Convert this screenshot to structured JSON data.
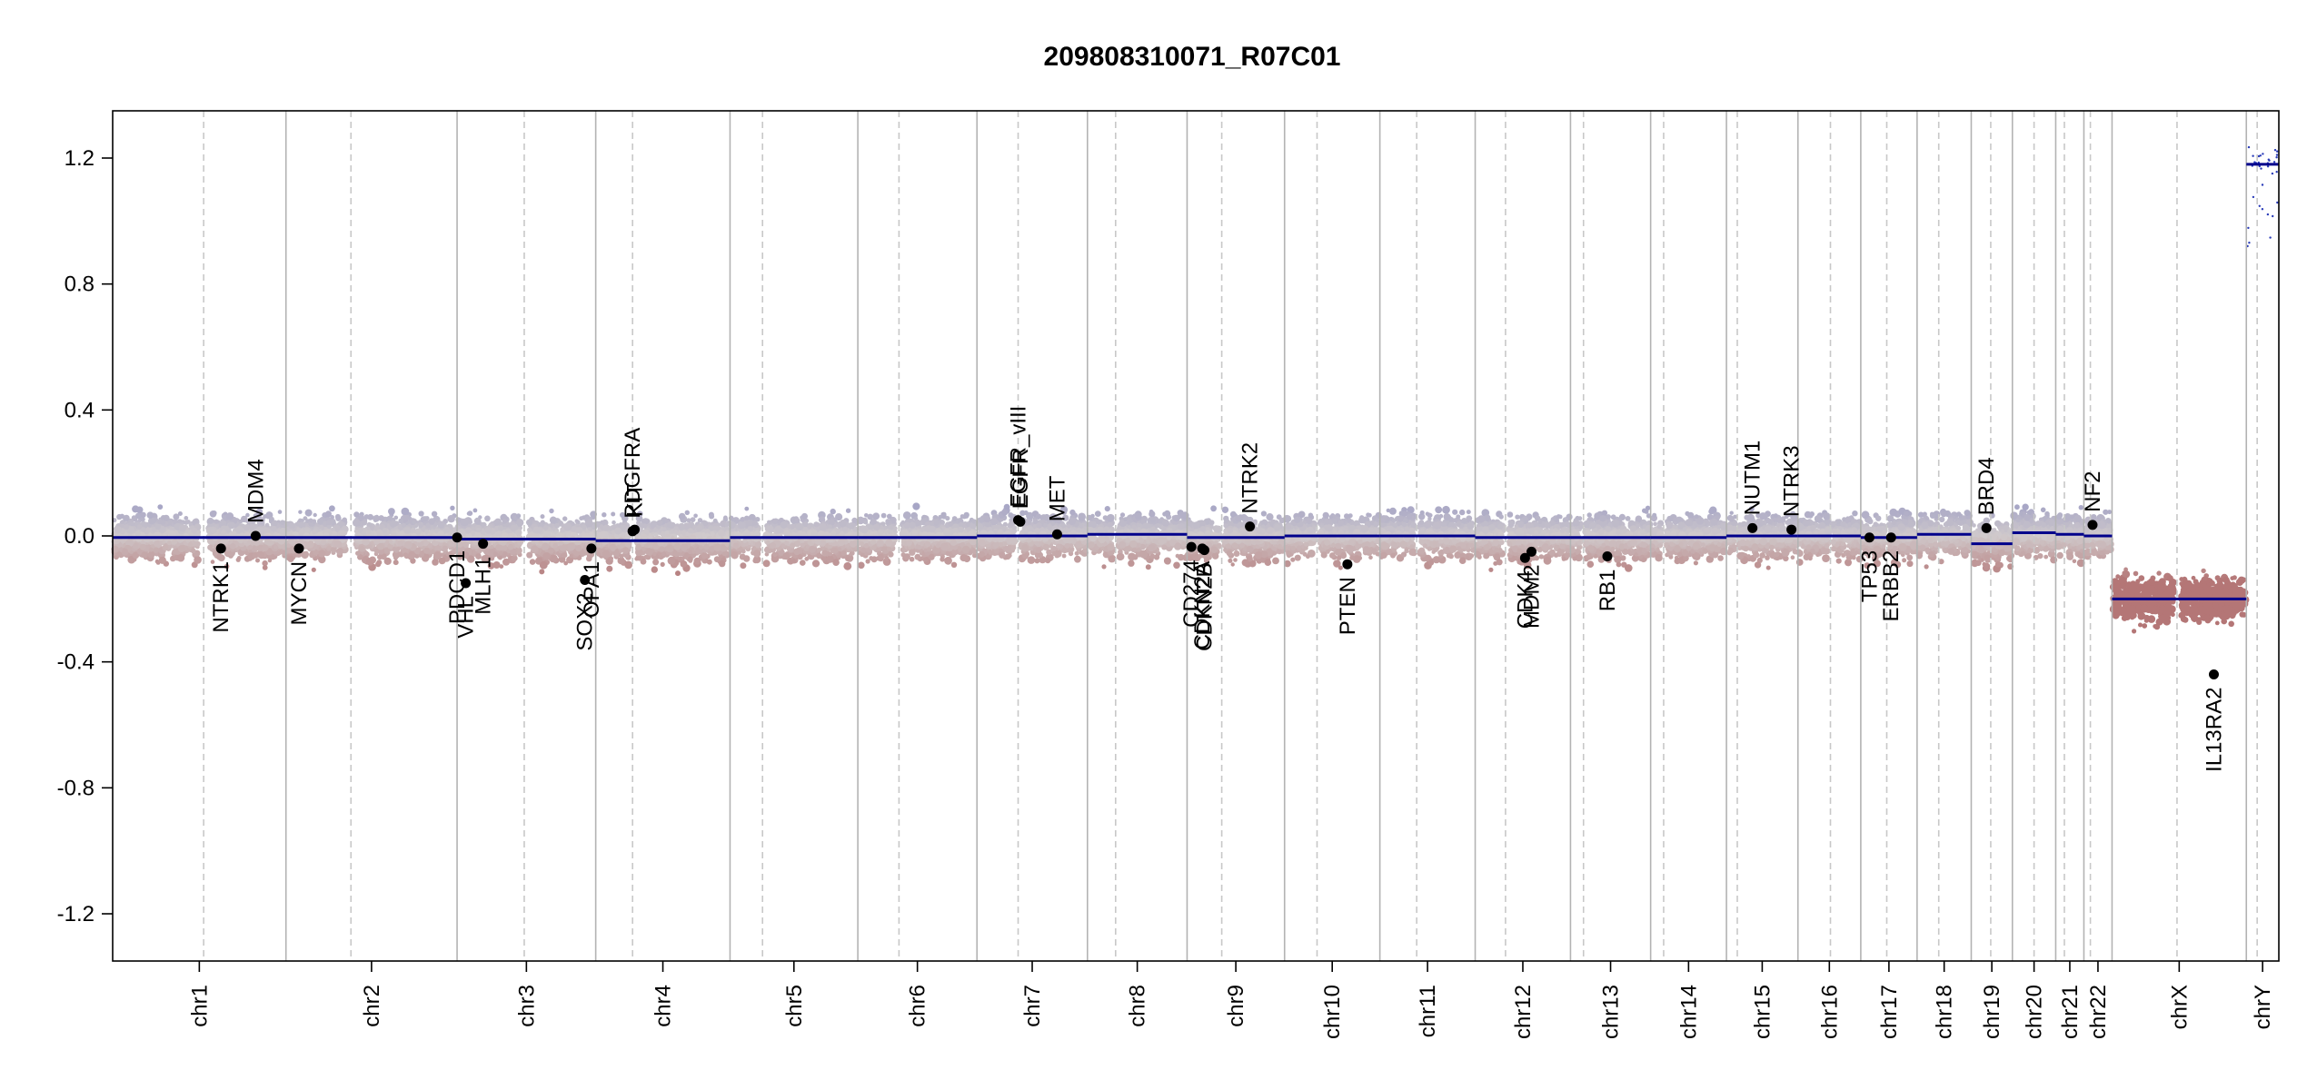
{
  "chart_data": {
    "type": "scatter",
    "title": "209808310071_R07C01",
    "xlabel": "",
    "ylabel": "",
    "ylim": [
      -1.35,
      1.35
    ],
    "yticks": [
      -1.2,
      -0.8,
      -0.4,
      0.0,
      0.4,
      0.8,
      1.2
    ],
    "ytick_labels": [
      "-1.2",
      "-0.8",
      "-0.4",
      "0.0",
      "0.4",
      "0.8",
      "1.2"
    ],
    "xlim": [
      0,
      1000
    ],
    "grid": "chromosome boundary lines (solid) and centromere lines (dashed)",
    "colors": {
      "axis": "#000000",
      "boundary": "#b3b3b3",
      "centromere": "#c8c8c8",
      "segment": "#00008b",
      "gain": "#9c9cc4",
      "loss": "#b47676",
      "gene_point": "#000000"
    },
    "chromosomes": [
      {
        "name": "chr1",
        "start": 0,
        "end": 80,
        "centromere": 42,
        "segment": -0.005
      },
      {
        "name": "chr2",
        "start": 80,
        "end": 159,
        "centromere": 110,
        "segment": -0.005
      },
      {
        "name": "chr3",
        "start": 159,
        "end": 223,
        "centromere": 190,
        "segment": -0.01
      },
      {
        "name": "chr4",
        "start": 223,
        "end": 285,
        "centromere": 240,
        "segment": -0.015
      },
      {
        "name": "chr5",
        "start": 285,
        "end": 344,
        "centromere": 300,
        "segment": -0.005
      },
      {
        "name": "chr6",
        "start": 344,
        "end": 399,
        "centromere": 363,
        "segment": -0.005
      },
      {
        "name": "chr7",
        "start": 399,
        "end": 450,
        "centromere": 418,
        "segment": 0.0
      },
      {
        "name": "chr8",
        "start": 450,
        "end": 496,
        "centromere": 463,
        "segment": 0.005
      },
      {
        "name": "chr9",
        "start": 496,
        "end": 541,
        "centromere": 512,
        "segment": -0.005
      },
      {
        "name": "chr10",
        "start": 541,
        "end": 585,
        "centromere": 556,
        "segment": 0.0
      },
      {
        "name": "chr11",
        "start": 585,
        "end": 629,
        "centromere": 602,
        "segment": 0.0
      },
      {
        "name": "chr12",
        "start": 629,
        "end": 673,
        "centromere": 643,
        "segment": -0.005
      },
      {
        "name": "chr13",
        "start": 673,
        "end": 710,
        "centromere": 679,
        "segment": -0.005
      },
      {
        "name": "chr14",
        "start": 710,
        "end": 745,
        "centromere": 716,
        "segment": -0.005
      },
      {
        "name": "chr15",
        "start": 745,
        "end": 778,
        "centromere": 750,
        "segment": 0.0
      },
      {
        "name": "chr16",
        "start": 778,
        "end": 807,
        "centromere": 793,
        "segment": 0.0
      },
      {
        "name": "chr17",
        "start": 807,
        "end": 833,
        "centromere": 819,
        "segment": -0.005
      },
      {
        "name": "chr18",
        "start": 833,
        "end": 858,
        "centromere": 843,
        "segment": 0.005
      },
      {
        "name": "chr19",
        "start": 858,
        "end": 877,
        "centromere": 867,
        "segment": -0.025
      },
      {
        "name": "chr20",
        "start": 877,
        "end": 897,
        "centromere": 887,
        "segment": 0.01
      },
      {
        "name": "chr21",
        "start": 897,
        "end": 910,
        "centromere": 901,
        "segment": 0.005
      },
      {
        "name": "chr22",
        "start": 910,
        "end": 923,
        "centromere": 913,
        "segment": 0.0
      },
      {
        "name": "chrX",
        "start": 923,
        "end": 985,
        "centromere": 953,
        "segment": -0.2
      },
      {
        "name": "chrY",
        "start": 985,
        "end": 1000,
        "centromere": 990,
        "segment": 1.18
      }
    ],
    "genes": [
      {
        "name": "NTRK1",
        "x": 50,
        "y": -0.04,
        "label_side": "below"
      },
      {
        "name": "MDM4",
        "x": 66,
        "y": 0.0,
        "label_side": "above"
      },
      {
        "name": "MYCN",
        "x": 86,
        "y": -0.04,
        "label_side": "below"
      },
      {
        "name": "PDCD1",
        "x": 159,
        "y": -0.005,
        "label_side": "below"
      },
      {
        "name": "VHL",
        "x": 163,
        "y": -0.15,
        "label_side": "below"
      },
      {
        "name": "MLH1",
        "x": 171,
        "y": -0.025,
        "label_side": "below"
      },
      {
        "name": "SOX2",
        "x": 218,
        "y": -0.14,
        "label_side": "below"
      },
      {
        "name": "OPA1",
        "x": 221,
        "y": -0.04,
        "label_side": "below"
      },
      {
        "name": "PDGFRA",
        "x": 240,
        "y": 0.015,
        "label_side": "above"
      },
      {
        "name": "KIT",
        "x": 241,
        "y": 0.02,
        "label_side": "above"
      },
      {
        "name": "EGFR_vIII",
        "x": 418,
        "y": 0.05,
        "label_side": "above"
      },
      {
        "name": "EGFR",
        "x": 419,
        "y": 0.045,
        "label_side": "above"
      },
      {
        "name": "MET",
        "x": 436,
        "y": 0.005,
        "label_side": "above"
      },
      {
        "name": "CD274",
        "x": 498,
        "y": -0.035,
        "label_side": "below"
      },
      {
        "name": "CDKN2A",
        "x": 503,
        "y": -0.04,
        "label_side": "below"
      },
      {
        "name": "CDKN2B",
        "x": 504,
        "y": -0.045,
        "label_side": "below"
      },
      {
        "name": "NTRK2",
        "x": 525,
        "y": 0.03,
        "label_side": "above"
      },
      {
        "name": "PTEN",
        "x": 570,
        "y": -0.09,
        "label_side": "below"
      },
      {
        "name": "CDK4",
        "x": 652,
        "y": -0.07,
        "label_side": "below"
      },
      {
        "name": "MDM2",
        "x": 655,
        "y": -0.05,
        "label_side": "below"
      },
      {
        "name": "RB1",
        "x": 690,
        "y": -0.065,
        "label_side": "below"
      },
      {
        "name": "NUTM1",
        "x": 757,
        "y": 0.025,
        "label_side": "above"
      },
      {
        "name": "NTRK3",
        "x": 775,
        "y": 0.02,
        "label_side": "above"
      },
      {
        "name": "TP53",
        "x": 811,
        "y": -0.005,
        "label_side": "below"
      },
      {
        "name": "ERBB2",
        "x": 821,
        "y": -0.005,
        "label_side": "below"
      },
      {
        "name": "BRD4",
        "x": 865,
        "y": 0.025,
        "label_side": "above"
      },
      {
        "name": "NF2",
        "x": 914,
        "y": 0.035,
        "label_side": "above"
      },
      {
        "name": "IL13RA2",
        "x": 970,
        "y": -0.44,
        "label_side": "below"
      }
    ]
  }
}
